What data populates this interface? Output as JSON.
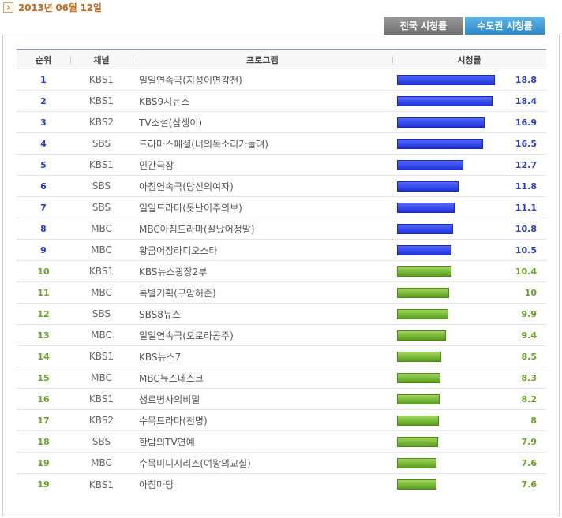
{
  "date": "2013년 06월 12일",
  "tabs": [
    {
      "label": "전국 시청률",
      "active": false
    },
    {
      "label": "수도권 시청률",
      "active": true
    }
  ],
  "table": {
    "headers": {
      "rank": "순위",
      "channel": "채널",
      "program": "프로그램",
      "rating": "시청률"
    },
    "max_rating": 18.8,
    "rows": [
      {
        "rank": "1",
        "channel": "KBS1",
        "program": "일일연속극(지성이면감천)",
        "rating": "18.8",
        "value": 18.8,
        "color": "blue"
      },
      {
        "rank": "2",
        "channel": "KBS1",
        "program": "KBS9시뉴스",
        "rating": "18.4",
        "value": 18.4,
        "color": "blue"
      },
      {
        "rank": "3",
        "channel": "KBS2",
        "program": "TV소설(삼생이)",
        "rating": "16.9",
        "value": 16.9,
        "color": "blue"
      },
      {
        "rank": "4",
        "channel": "SBS",
        "program": "드라마스페셜(너의목소리가들려)",
        "rating": "16.5",
        "value": 16.5,
        "color": "blue"
      },
      {
        "rank": "5",
        "channel": "KBS1",
        "program": "인간극장",
        "rating": "12.7",
        "value": 12.7,
        "color": "blue"
      },
      {
        "rank": "6",
        "channel": "SBS",
        "program": "아침연속극(당신의여자)",
        "rating": "11.8",
        "value": 11.8,
        "color": "blue"
      },
      {
        "rank": "7",
        "channel": "SBS",
        "program": "일일드라마(못난이주의보)",
        "rating": "11.1",
        "value": 11.1,
        "color": "blue"
      },
      {
        "rank": "8",
        "channel": "MBC",
        "program": "MBC아침드라마(잘났어정말)",
        "rating": "10.8",
        "value": 10.8,
        "color": "blue"
      },
      {
        "rank": "9",
        "channel": "MBC",
        "program": "황금어장라디오스타",
        "rating": "10.5",
        "value": 10.5,
        "color": "blue"
      },
      {
        "rank": "10",
        "channel": "KBS1",
        "program": "KBS뉴스광장2부",
        "rating": "10.4",
        "value": 10.4,
        "color": "green"
      },
      {
        "rank": "11",
        "channel": "MBC",
        "program": "특별기획(구암허준)",
        "rating": "10",
        "value": 10,
        "color": "green"
      },
      {
        "rank": "12",
        "channel": "SBS",
        "program": "SBS8뉴스",
        "rating": "9.9",
        "value": 9.9,
        "color": "green"
      },
      {
        "rank": "13",
        "channel": "MBC",
        "program": "일일연속극(오로라공주)",
        "rating": "9.4",
        "value": 9.4,
        "color": "green"
      },
      {
        "rank": "14",
        "channel": "KBS1",
        "program": "KBS뉴스7",
        "rating": "8.5",
        "value": 8.5,
        "color": "green"
      },
      {
        "rank": "15",
        "channel": "MBC",
        "program": "MBC뉴스데스크",
        "rating": "8.3",
        "value": 8.3,
        "color": "green"
      },
      {
        "rank": "16",
        "channel": "KBS1",
        "program": "생로병사의비밀",
        "rating": "8.2",
        "value": 8.2,
        "color": "green"
      },
      {
        "rank": "17",
        "channel": "KBS2",
        "program": "수목드라마(천명)",
        "rating": "8",
        "value": 8,
        "color": "green"
      },
      {
        "rank": "18",
        "channel": "SBS",
        "program": "한밤의TV연예",
        "rating": "7.9",
        "value": 7.9,
        "color": "green"
      },
      {
        "rank": "19",
        "channel": "MBC",
        "program": "수목미니시리즈(여왕의교실)",
        "rating": "7.6",
        "value": 7.6,
        "color": "green"
      },
      {
        "rank": "19",
        "channel": "KBS1",
        "program": "아침마당",
        "rating": "7.6",
        "value": 7.6,
        "color": "green"
      }
    ]
  }
}
